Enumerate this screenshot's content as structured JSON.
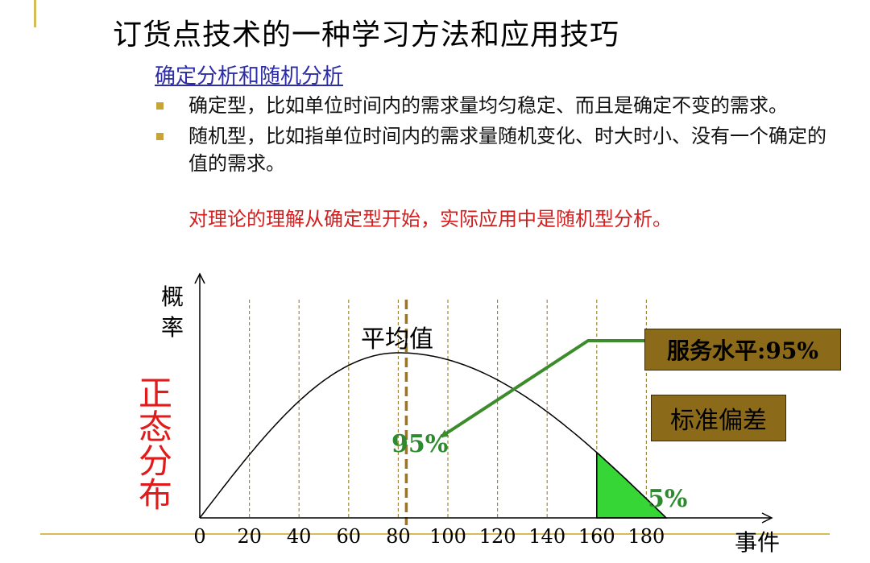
{
  "title": "订货点技术的一种学习方法和应用技巧",
  "subtitle": "确定分析和随机分析",
  "bullets": [
    {
      "text": "确定型，比如单位时间内的需求量均匀稳定、而且是确定不变的需求。"
    },
    {
      "text": "随机型，比如指单位时间内的需求量随机变化、时大时小、没有一个确定的值的需求。"
    }
  ],
  "note": "对理论的理解从确定型开始，实际应用中是随机型分析。",
  "diagram": {
    "y_axis_label": "概率",
    "side_label": "正态分布",
    "mean_label": "平均值",
    "service_level_box": "服务水平:95%",
    "std_dev_box": "标准偏差",
    "area_95_label": "95%",
    "tail_5_label": "5%",
    "x_axis_label": "事件",
    "x_ticks": [
      "0",
      "20",
      "40",
      "60",
      "80",
      "100",
      "120",
      "140",
      "160",
      "180"
    ],
    "mean_value": 80,
    "service_cutoff": 160,
    "colors": {
      "curve": "#000000",
      "mean_line": "#a07418",
      "gridline": "#a08a3a",
      "tail_fill": "#35d635",
      "arrow": "#3d8c2c",
      "box_fill": "#8b6a1a",
      "normal_label": "#e01b1b"
    }
  }
}
